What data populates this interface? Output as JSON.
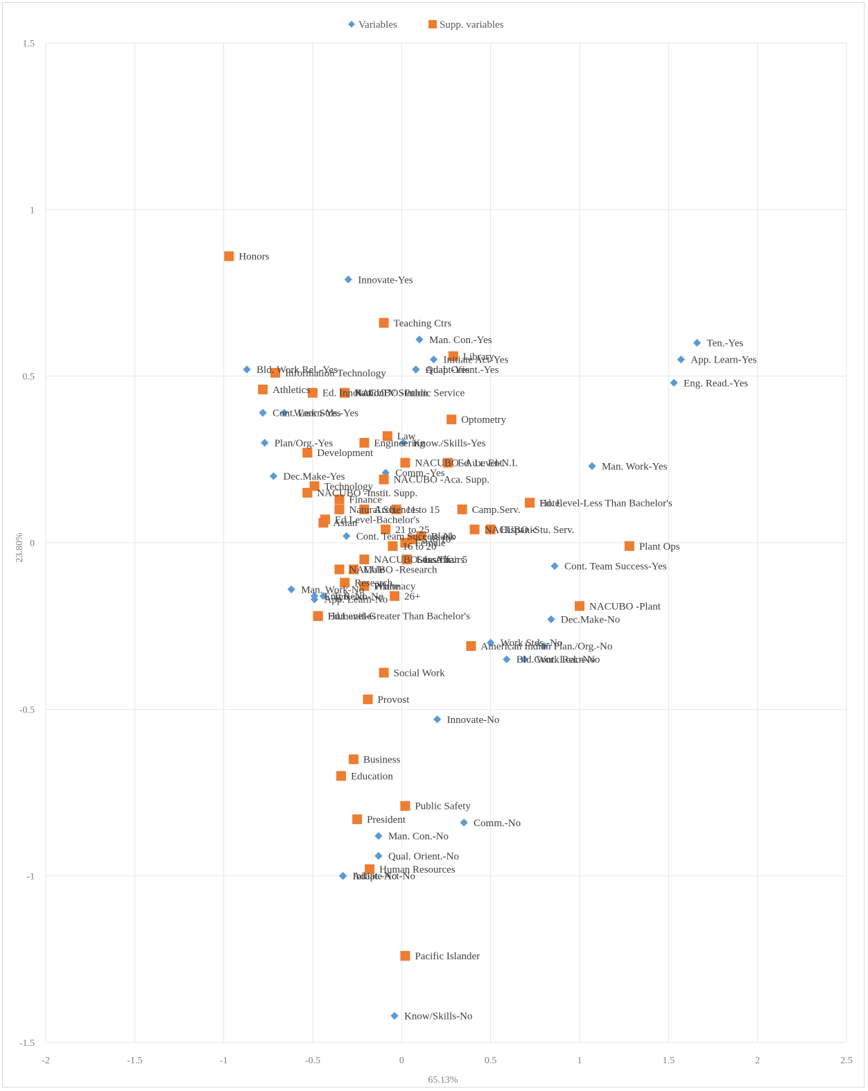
{
  "colors": {
    "variables": "#5b9bd5",
    "supp": "#ed7d31",
    "grid": "#e6e6e6",
    "text": "#404040"
  },
  "chart_data": {
    "type": "scatter",
    "xlabel": "65.13%",
    "ylabel": "23.80%",
    "xlim": [
      -2,
      2.5
    ],
    "ylim": [
      -1.5,
      1.5
    ],
    "xticks": [
      -2,
      -1.5,
      -1,
      -0.5,
      0,
      0.5,
      1,
      1.5,
      2,
      2.5
    ],
    "yticks": [
      -1.5,
      -1,
      -0.5,
      0,
      0.5,
      1,
      1.5
    ],
    "xtick_labels": [
      "-2",
      "-1.5",
      "-1",
      "-0.5",
      "0",
      "0.5",
      "1",
      "1.5",
      "2",
      "2.5"
    ],
    "ytick_labels": [
      "-1.5",
      "-1",
      "-0.5",
      "0",
      "0.5",
      "1",
      "1.5"
    ],
    "grid": true,
    "legend_position": "top-center",
    "series": [
      {
        "name": "Variables",
        "marker": "diamond",
        "points": [
          {
            "label": "Innovate-Yes",
            "x": -0.3,
            "y": 0.79
          },
          {
            "label": "Man. Con.-Yes",
            "x": 0.1,
            "y": 0.61
          },
          {
            "label": "Initiate Act-Yes",
            "x": 0.18,
            "y": 0.55
          },
          {
            "label": "Qual. Orient.-Yes",
            "x": 0.08,
            "y": 0.52
          },
          {
            "label": "Adapt-Yes",
            "x": 0.08,
            "y": 0.52
          },
          {
            "label": "Ten.-Yes",
            "x": 1.66,
            "y": 0.6
          },
          {
            "label": "App. Learn-Yes",
            "x": 1.57,
            "y": 0.55
          },
          {
            "label": "Eng. Read.-Yes",
            "x": 1.53,
            "y": 0.48
          },
          {
            "label": "Bld. Work Rel.-Yes",
            "x": -0.87,
            "y": 0.52
          },
          {
            "label": "Cont. Learn-Yes",
            "x": -0.78,
            "y": 0.39
          },
          {
            "label": "Work Stds.-Yes",
            "x": -0.66,
            "y": 0.39
          },
          {
            "label": "Plan/Org.-Yes",
            "x": -0.77,
            "y": 0.3
          },
          {
            "label": "Know./Skills-Yes",
            "x": 0.01,
            "y": 0.3
          },
          {
            "label": "Man. Work-Yes",
            "x": 1.07,
            "y": 0.23
          },
          {
            "label": "Comm.-Yes",
            "x": -0.09,
            "y": 0.21
          },
          {
            "label": "Dec.Make-Yes",
            "x": -0.72,
            "y": 0.2
          },
          {
            "label": "Cont. Team Success-No",
            "x": -0.31,
            "y": 0.02
          },
          {
            "label": "Cont. Team Success-Yes",
            "x": 0.86,
            "y": -0.07
          },
          {
            "label": "Man. Work-No",
            "x": -0.62,
            "y": -0.14
          },
          {
            "label": "Eng.Read.-No",
            "x": -0.49,
            "y": -0.16
          },
          {
            "label": "Ten.-No",
            "x": -0.44,
            "y": -0.16
          },
          {
            "label": "App. Learn-No",
            "x": -0.49,
            "y": -0.17
          },
          {
            "label": "Dec.Make-No",
            "x": 0.84,
            "y": -0.23
          },
          {
            "label": "Work Stds.-No",
            "x": 0.5,
            "y": -0.3
          },
          {
            "label": "Plan./Org.-No",
            "x": 0.8,
            "y": -0.31
          },
          {
            "label": "Bld. Work Rel.-No",
            "x": 0.59,
            "y": -0.35
          },
          {
            "label": "Cont. Learn-No",
            "x": 0.69,
            "y": -0.35
          },
          {
            "label": "Innovate-No",
            "x": 0.2,
            "y": -0.53
          },
          {
            "label": "Comm.-No",
            "x": 0.35,
            "y": -0.84
          },
          {
            "label": "Man. Con.-No",
            "x": -0.13,
            "y": -0.88
          },
          {
            "label": "Qual. Orient.-No",
            "x": -0.13,
            "y": -0.94
          },
          {
            "label": "Adapt.-No",
            "x": -0.33,
            "y": -1.0
          },
          {
            "label": "Initiate Act-No",
            "x": -0.33,
            "y": -1.0
          },
          {
            "label": "Know/Skills-No",
            "x": -0.04,
            "y": -1.42
          }
        ]
      },
      {
        "name": "Supp. variables",
        "marker": "square",
        "points": [
          {
            "label": "Honors",
            "x": -0.97,
            "y": 0.86
          },
          {
            "label": "Teaching Ctrs",
            "x": -0.1,
            "y": 0.66
          },
          {
            "label": "Library",
            "x": 0.29,
            "y": 0.56
          },
          {
            "label": "Information Technology",
            "x": -0.71,
            "y": 0.51
          },
          {
            "label": "Athletics",
            "x": -0.78,
            "y": 0.46
          },
          {
            "label": "Ed. Innovation",
            "x": -0.5,
            "y": 0.45
          },
          {
            "label": "Radio/TV Station",
            "x": -0.32,
            "y": 0.45
          },
          {
            "label": "NACUBO -Public Service",
            "x": -0.32,
            "y": 0.45
          },
          {
            "label": "Optometry",
            "x": 0.28,
            "y": 0.37
          },
          {
            "label": "Law",
            "x": -0.08,
            "y": 0.32
          },
          {
            "label": "Engineering",
            "x": -0.21,
            "y": 0.3
          },
          {
            "label": "Development",
            "x": -0.53,
            "y": 0.27
          },
          {
            "label": "NACUBO -Aux. Ent.",
            "x": 0.02,
            "y": 0.24
          },
          {
            "label": "Ed. Level-N.I.",
            "x": 0.26,
            "y": 0.24
          },
          {
            "label": "NACUBO -Aca. Supp.",
            "x": -0.1,
            "y": 0.19
          },
          {
            "label": "Technology",
            "x": -0.49,
            "y": 0.17
          },
          {
            "label": "NACUBO -Instit. Supp.",
            "x": -0.53,
            "y": 0.15
          },
          {
            "label": "Finance",
            "x": -0.35,
            "y": 0.13
          },
          {
            "label": "Natural Sciences",
            "x": -0.35,
            "y": 0.1
          },
          {
            "label": "Arch.",
            "x": -0.21,
            "y": 0.1
          },
          {
            "label": "11 to 15",
            "x": -0.03,
            "y": 0.1
          },
          {
            "label": "Camp.Serv.",
            "x": 0.34,
            "y": 0.1
          },
          {
            "label": "Hotel",
            "x": 0.72,
            "y": 0.12
          },
          {
            "label": "Ed. Level-Less Than Bachelor's",
            "x": 0.72,
            "y": 0.12
          },
          {
            "label": "Ed.Level-Bachelor's",
            "x": -0.43,
            "y": 0.07
          },
          {
            "label": "Asian",
            "x": -0.44,
            "y": 0.06
          },
          {
            "label": "21 to 25",
            "x": -0.09,
            "y": 0.04
          },
          {
            "label": "Hispanic",
            "x": 0.5,
            "y": 0.04
          },
          {
            "label": "NACUBO -Stu. Serv.",
            "x": 0.41,
            "y": 0.04
          },
          {
            "label": "Black",
            "x": 0.11,
            "y": 0.02
          },
          {
            "label": "16 to 20",
            "x": -0.05,
            "y": -0.01
          },
          {
            "label": "5 to 10",
            "x": 0.06,
            "y": 0.01
          },
          {
            "label": "Female",
            "x": 0.02,
            "y": 0.0
          },
          {
            "label": "Plant Ops",
            "x": 1.28,
            "y": -0.01
          },
          {
            "label": "NACUBO -Instruc.",
            "x": -0.21,
            "y": -0.05
          },
          {
            "label": "Less Than 5",
            "x": 0.03,
            "y": -0.05
          },
          {
            "label": "NACUBO -Research",
            "x": -0.35,
            "y": -0.08
          },
          {
            "label": "Male",
            "x": -0.27,
            "y": -0.08
          },
          {
            "label": "Stu. Affairs",
            "x": 0.03,
            "y": -0.05
          },
          {
            "label": "Research",
            "x": -0.32,
            "y": -0.12
          },
          {
            "label": "Pharmacy",
            "x": -0.21,
            "y": -0.13
          },
          {
            "label": "White",
            "x": -0.21,
            "y": -0.13
          },
          {
            "label": "26+",
            "x": -0.04,
            "y": -0.16
          },
          {
            "label": "NACUBO -Plant",
            "x": 1.0,
            "y": -0.19
          },
          {
            "label": "Humanities",
            "x": -0.47,
            "y": -0.22
          },
          {
            "label": "Ed.Level-Greater Than Bachelor's",
            "x": -0.47,
            "y": -0.22
          },
          {
            "label": "American Indian",
            "x": 0.39,
            "y": -0.31
          },
          {
            "label": "Social Work",
            "x": -0.1,
            "y": -0.39
          },
          {
            "label": "Provost",
            "x": -0.19,
            "y": -0.47
          },
          {
            "label": "Business",
            "x": -0.27,
            "y": -0.65
          },
          {
            "label": "Education",
            "x": -0.34,
            "y": -0.7
          },
          {
            "label": "Public Safety",
            "x": 0.02,
            "y": -0.79
          },
          {
            "label": "President",
            "x": -0.25,
            "y": -0.83
          },
          {
            "label": "Human Resources",
            "x": -0.18,
            "y": -0.98
          },
          {
            "label": "Pacific Islander",
            "x": 0.02,
            "y": -1.24
          }
        ]
      }
    ]
  }
}
